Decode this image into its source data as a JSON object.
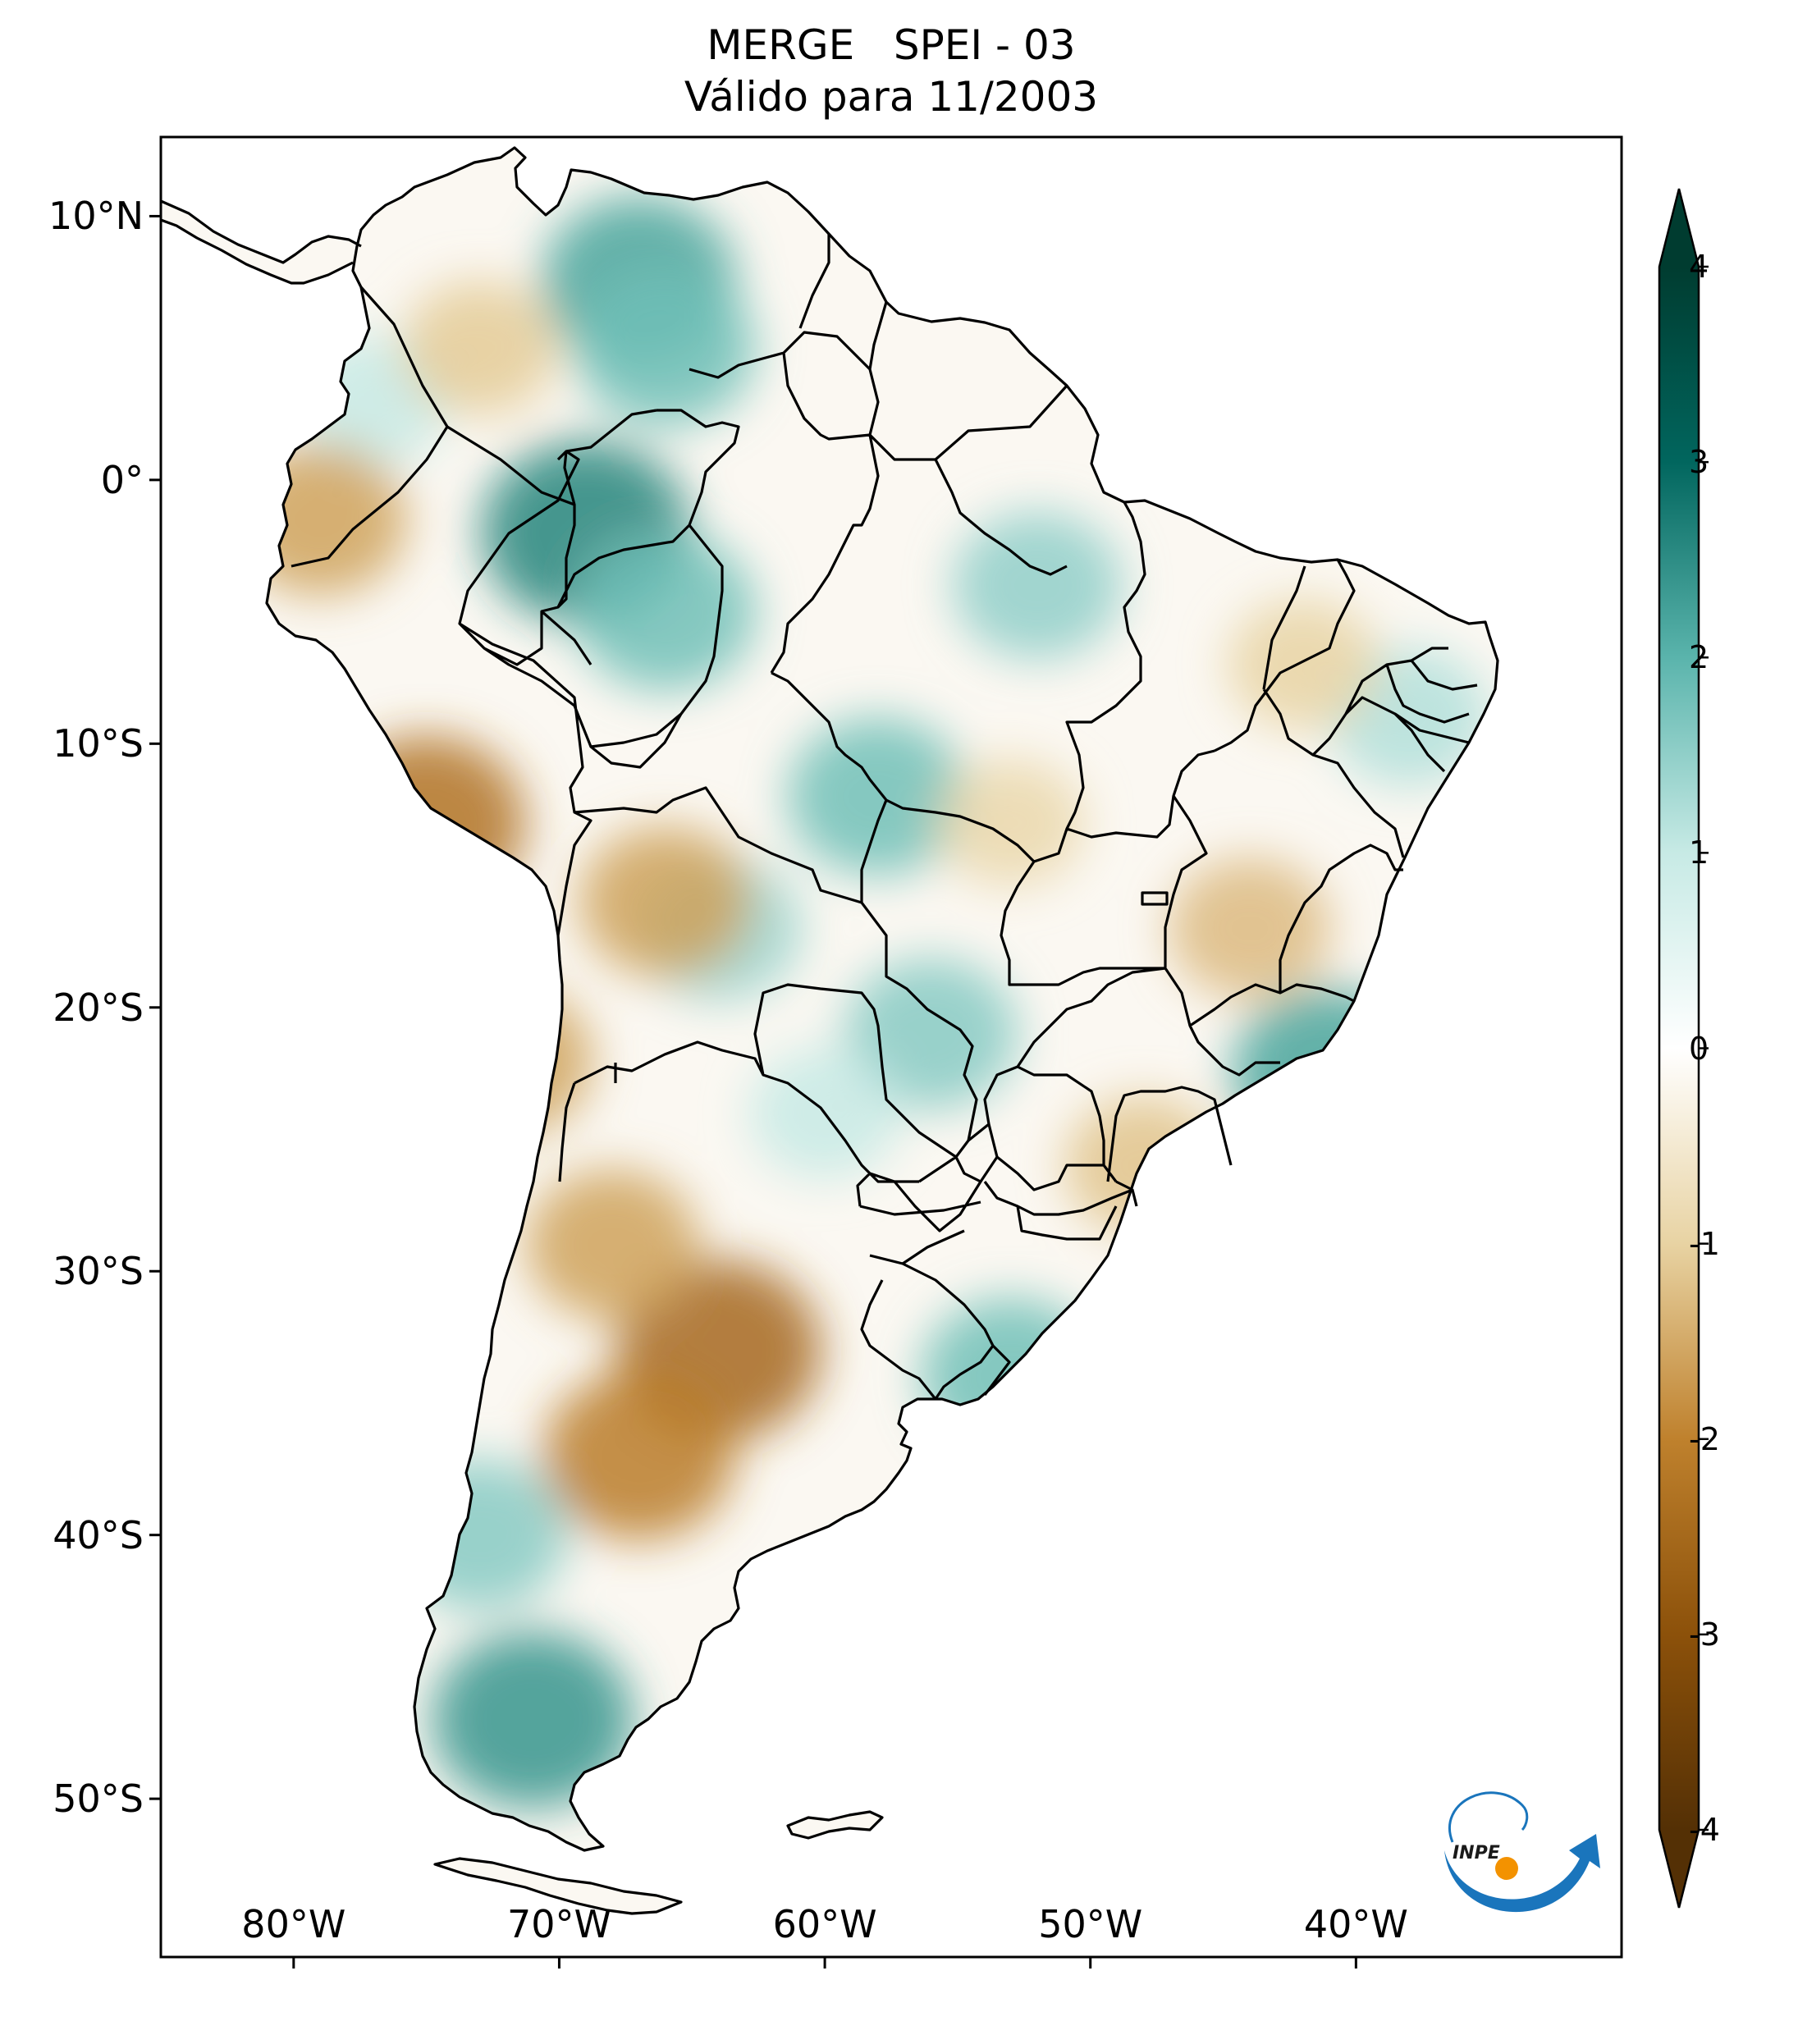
{
  "title": {
    "line1": "MERGE   SPEI - 03",
    "line2": "Válido para 11/2003"
  },
  "map": {
    "lon_range": [
      -85,
      -30
    ],
    "lat_range": [
      -56,
      13
    ],
    "lat_ticks": [
      {
        "value": 10,
        "label": "10°N"
      },
      {
        "value": 0,
        "label": "0°"
      },
      {
        "value": -10,
        "label": "10°S"
      },
      {
        "value": -20,
        "label": "20°S"
      },
      {
        "value": -30,
        "label": "30°S"
      },
      {
        "value": -40,
        "label": "40°S"
      },
      {
        "value": -50,
        "label": "50°S"
      }
    ],
    "lon_ticks": [
      {
        "value": -80,
        "label": "80°W"
      },
      {
        "value": -70,
        "label": "70°W"
      },
      {
        "value": -60,
        "label": "60°W"
      },
      {
        "value": -50,
        "label": "50°W"
      },
      {
        "value": -40,
        "label": "40°W"
      }
    ],
    "anomalies": [
      {
        "lon": -67,
        "lat": 7.5,
        "value": 2.2
      },
      {
        "lon": -66,
        "lat": 5,
        "value": 1.8
      },
      {
        "lon": -69,
        "lat": -2,
        "value": 2.6
      },
      {
        "lon": -66,
        "lat": -5,
        "value": 1.8
      },
      {
        "lon": -58,
        "lat": -12,
        "value": 1.8
      },
      {
        "lon": -52,
        "lat": -4,
        "value": 1.5
      },
      {
        "lon": -56,
        "lat": -21,
        "value": 1.6
      },
      {
        "lon": -64,
        "lat": -17,
        "value": 1.4
      },
      {
        "lon": -53,
        "lat": -34,
        "value": 1.8
      },
      {
        "lon": -71,
        "lat": -47,
        "value": 2.4
      },
      {
        "lon": -73,
        "lat": -40,
        "value": 1.6
      },
      {
        "lon": -77,
        "lat": 3,
        "value": 1.0
      },
      {
        "lon": -41,
        "lat": -22.5,
        "value": 2.2
      },
      {
        "lon": -38,
        "lat": -9,
        "value": 1.2
      },
      {
        "lon": -64,
        "lat": -33,
        "value": -2.5
      },
      {
        "lon": -67,
        "lat": -37,
        "value": -2.1
      },
      {
        "lon": -68,
        "lat": -29,
        "value": -1.6
      },
      {
        "lon": -75,
        "lat": -13,
        "value": -2.3
      },
      {
        "lon": -79,
        "lat": -1.5,
        "value": -1.6
      },
      {
        "lon": -72,
        "lat": -22,
        "value": -1.6
      },
      {
        "lon": -66,
        "lat": -16,
        "value": -1.6
      },
      {
        "lon": -44,
        "lat": -17,
        "value": -1.3
      },
      {
        "lon": -42,
        "lat": -7,
        "value": -1.0
      },
      {
        "lon": -73,
        "lat": 5,
        "value": -1.1
      },
      {
        "lon": -48,
        "lat": -26,
        "value": -1.2
      },
      {
        "lon": -53,
        "lat": -13,
        "value": -0.9
      },
      {
        "lon": -60,
        "lat": -24,
        "value": 1.0
      }
    ]
  },
  "colorbar": {
    "min": -4,
    "max": 4,
    "ticks": [
      "4",
      "3",
      "2",
      "1",
      "0",
      "-1",
      "-2",
      "-3",
      "-4"
    ],
    "colors": {
      "-4": "#543005",
      "-3": "#8c510a",
      "-2": "#bf812d",
      "-1": "#e8d3a3",
      "0": "#ffffff",
      "1": "#c7eae5",
      "2": "#5ab4ac",
      "3": "#01665e",
      "4": "#003c30"
    }
  },
  "logo": {
    "text": "INPE",
    "colors": {
      "primary": "#1a75bc",
      "accent": "#f39200"
    }
  }
}
